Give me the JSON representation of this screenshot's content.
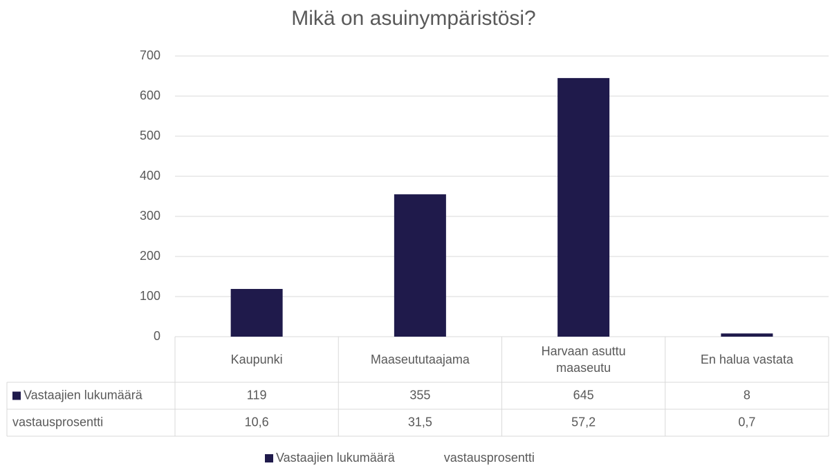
{
  "chart_data": {
    "type": "bar",
    "title": "Mikä on asuinympäristösi?",
    "categories": [
      "Kaupunki",
      "Maaseututaajama",
      "Harvaan asuttu maaseutu",
      "En halua vastata"
    ],
    "series": [
      {
        "name": "Vastaajien lukumäärä",
        "color": "#1f1a4b",
        "values": [
          119,
          355,
          645,
          8
        ]
      },
      {
        "name": "vastausprosentti",
        "color": null,
        "values": [
          10.6,
          31.5,
          57.2,
          0.7
        ],
        "value_labels": [
          "10,6",
          "31,5",
          "57,2",
          "0,7"
        ]
      }
    ],
    "ylim": [
      0,
      700
    ],
    "yticks": [
      0,
      100,
      200,
      300,
      400,
      500,
      600,
      700
    ],
    "grid": true,
    "legend": "bottom",
    "data_table": true
  }
}
